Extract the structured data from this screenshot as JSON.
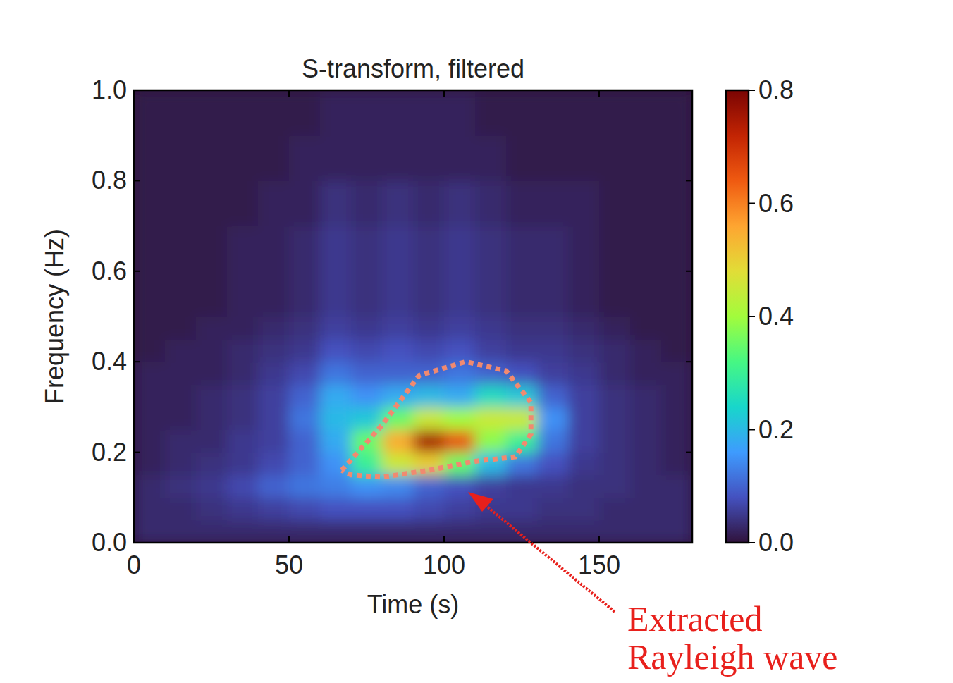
{
  "chart_data": {
    "type": "heatmap",
    "title": "S-transform, filtered",
    "x_label": "Time (s)",
    "y_label": "Frequency (Hz)",
    "xlim": [
      0,
      180
    ],
    "ylim": [
      0,
      1
    ],
    "xticks": [
      0,
      50,
      100,
      150
    ],
    "yticks": [
      {
        "value": 0,
        "label": "0.0"
      },
      0.2,
      0.4,
      0.6,
      0.8,
      {
        "value": 1,
        "label": "1.0"
      }
    ],
    "grid": false,
    "heatmap": {
      "x_bins": [
        0,
        10,
        20,
        30,
        40,
        50,
        60,
        70,
        80,
        90,
        100,
        110,
        120,
        130,
        140,
        150,
        160,
        170,
        180
      ],
      "y_bins": [
        0,
        0.05,
        0.1,
        0.15,
        0.2,
        0.25,
        0.3,
        0.35,
        0.4,
        0.45,
        0.5,
        0.55,
        0.6,
        0.65,
        0.7,
        0.75,
        0.8,
        0.85,
        0.9,
        0.95,
        1
      ],
      "z": [
        [
          0.03,
          0.03,
          0.03,
          0.03,
          0.03,
          0.03,
          0.03,
          0.03,
          0.03,
          0.03,
          0.03,
          0.03,
          0.03,
          0.03,
          0.03,
          0.03,
          0.03,
          0.03
        ],
        [
          0.03,
          0.03,
          0.04,
          0.05,
          0.06,
          0.07,
          0.08,
          0.08,
          0.08,
          0.07,
          0.06,
          0.05,
          0.05,
          0.04,
          0.04,
          0.03,
          0.03,
          0.03
        ],
        [
          0.03,
          0.04,
          0.05,
          0.07,
          0.1,
          0.12,
          0.13,
          0.15,
          0.14,
          0.1,
          0.08,
          0.06,
          0.05,
          0.05,
          0.04,
          0.04,
          0.03,
          0.03
        ],
        [
          0.02,
          0.03,
          0.04,
          0.05,
          0.07,
          0.1,
          0.15,
          0.3,
          0.45,
          0.5,
          0.35,
          0.2,
          0.12,
          0.08,
          0.05,
          0.04,
          0.03,
          0.02
        ],
        [
          0.02,
          0.03,
          0.03,
          0.05,
          0.06,
          0.1,
          0.18,
          0.35,
          0.55,
          0.75,
          0.65,
          0.38,
          0.3,
          0.12,
          0.06,
          0.04,
          0.03,
          0.02
        ],
        [
          0.02,
          0.02,
          0.03,
          0.04,
          0.06,
          0.12,
          0.2,
          0.22,
          0.35,
          0.45,
          0.4,
          0.45,
          0.45,
          0.15,
          0.06,
          0.04,
          0.03,
          0.02
        ],
        [
          0.02,
          0.02,
          0.03,
          0.04,
          0.06,
          0.1,
          0.18,
          0.15,
          0.18,
          0.2,
          0.18,
          0.25,
          0.22,
          0.1,
          0.06,
          0.04,
          0.03,
          0.02
        ],
        [
          0.02,
          0.02,
          0.02,
          0.03,
          0.05,
          0.07,
          0.12,
          0.1,
          0.1,
          0.1,
          0.12,
          0.1,
          0.08,
          0.06,
          0.05,
          0.03,
          0.02,
          0.02
        ],
        [
          0.01,
          0.02,
          0.02,
          0.03,
          0.04,
          0.05,
          0.08,
          0.07,
          0.08,
          0.07,
          0.08,
          0.06,
          0.05,
          0.05,
          0.04,
          0.03,
          0.02,
          0.01
        ],
        [
          0.01,
          0.01,
          0.02,
          0.02,
          0.03,
          0.04,
          0.06,
          0.05,
          0.06,
          0.05,
          0.06,
          0.05,
          0.04,
          0.04,
          0.03,
          0.02,
          0.01,
          0.01
        ],
        [
          0.01,
          0.01,
          0.01,
          0.02,
          0.02,
          0.03,
          0.05,
          0.04,
          0.05,
          0.04,
          0.05,
          0.04,
          0.03,
          0.03,
          0.02,
          0.01,
          0.01,
          0.01
        ],
        [
          0.01,
          0.01,
          0.01,
          0.02,
          0.02,
          0.03,
          0.05,
          0.04,
          0.05,
          0.04,
          0.05,
          0.04,
          0.03,
          0.03,
          0.02,
          0.01,
          0.01,
          0.01
        ],
        [
          0.01,
          0.01,
          0.01,
          0.02,
          0.02,
          0.03,
          0.05,
          0.04,
          0.05,
          0.04,
          0.05,
          0.04,
          0.03,
          0.03,
          0.02,
          0.01,
          0.01,
          0.01
        ],
        [
          0.01,
          0.01,
          0.01,
          0.02,
          0.02,
          0.03,
          0.05,
          0.04,
          0.05,
          0.04,
          0.05,
          0.04,
          0.03,
          0.03,
          0.02,
          0.01,
          0.01,
          0.01
        ],
        [
          0.01,
          0.01,
          0.01,
          0.01,
          0.02,
          0.02,
          0.04,
          0.03,
          0.04,
          0.03,
          0.04,
          0.03,
          0.02,
          0.02,
          0.02,
          0.01,
          0.01,
          0.01
        ],
        [
          0.01,
          0.01,
          0.01,
          0.01,
          0.02,
          0.02,
          0.04,
          0.03,
          0.04,
          0.03,
          0.04,
          0.03,
          0.02,
          0.02,
          0.02,
          0.01,
          0.01,
          0.01
        ],
        [
          0.01,
          0.01,
          0.01,
          0.01,
          0.01,
          0.02,
          0.02,
          0.02,
          0.02,
          0.02,
          0.02,
          0.02,
          0.01,
          0.01,
          0.01,
          0.01,
          0.01,
          0.01
        ],
        [
          0.01,
          0.01,
          0.01,
          0.01,
          0.01,
          0.02,
          0.02,
          0.02,
          0.02,
          0.02,
          0.02,
          0.02,
          0.01,
          0.01,
          0.01,
          0.01,
          0.01,
          0.01
        ],
        [
          0.01,
          0.01,
          0.01,
          0.01,
          0.01,
          0.01,
          0.02,
          0.02,
          0.02,
          0.02,
          0.02,
          0.01,
          0.01,
          0.01,
          0.01,
          0.01,
          0.01,
          0.01
        ],
        [
          0.01,
          0.01,
          0.01,
          0.01,
          0.01,
          0.01,
          0.02,
          0.02,
          0.02,
          0.02,
          0.02,
          0.01,
          0.01,
          0.01,
          0.01,
          0.01,
          0.01,
          0.01
        ]
      ]
    },
    "colorbar": {
      "range": [
        0,
        0.8
      ],
      "ticks": [
        {
          "value": 0,
          "label": "0.0"
        },
        0.2,
        0.4,
        0.6,
        0.8
      ]
    },
    "annotation": {
      "text": [
        "Extracted",
        "Rayleigh wave"
      ],
      "color": "#e8201c",
      "region": {
        "x": [
          67,
          80,
          92,
          107,
          120,
          128,
          128,
          123,
          110,
          95,
          80,
          70,
          67
        ],
        "y": [
          0.16,
          0.26,
          0.37,
          0.4,
          0.38,
          0.31,
          0.24,
          0.19,
          0.18,
          0.16,
          0.145,
          0.15,
          0.16
        ],
        "color": "#f08a70"
      }
    }
  }
}
